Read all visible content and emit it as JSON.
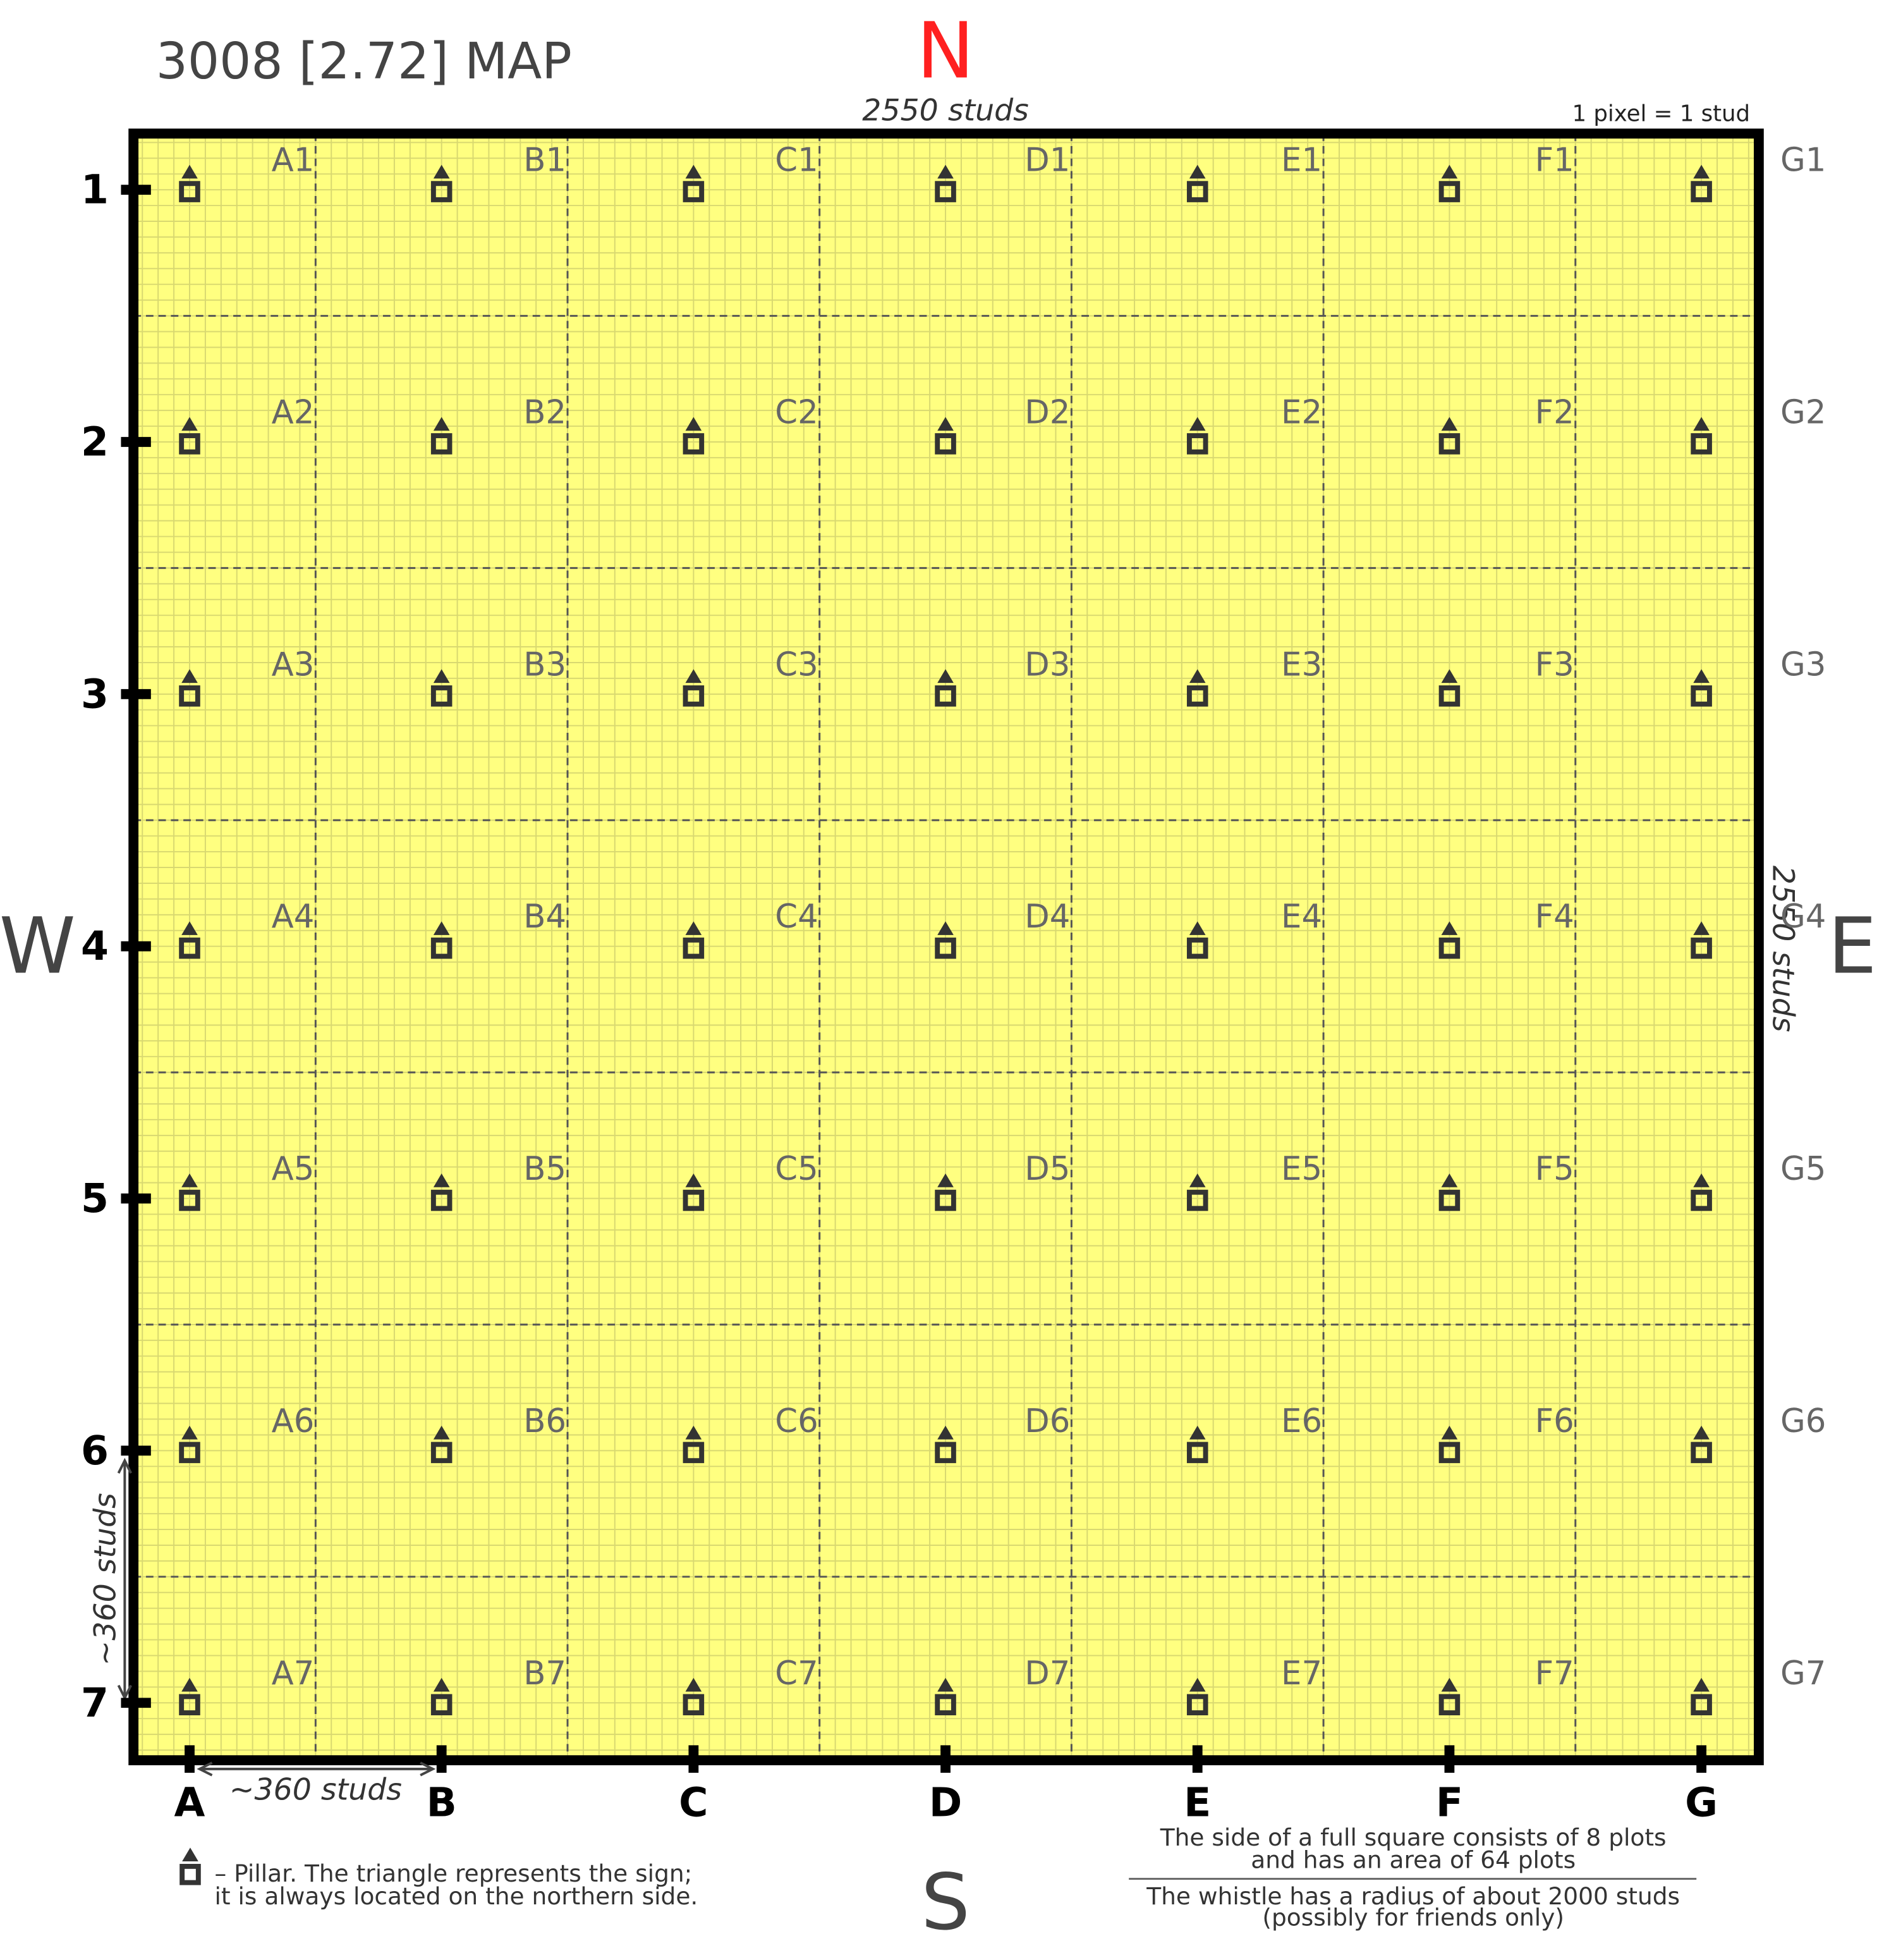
{
  "header": {
    "title": "3008 [2.72] MAP",
    "scale_note": "1 pixel = 1 stud"
  },
  "compass": {
    "north": "N",
    "south": "S",
    "east": "E",
    "west": "W"
  },
  "dimensions": {
    "top": "2550 studs",
    "right": "2550 studs",
    "cell_width": "~360 studs",
    "cell_height": "~360 studs"
  },
  "columns": [
    "A",
    "B",
    "C",
    "D",
    "E",
    "F",
    "G"
  ],
  "rows": [
    "1",
    "2",
    "3",
    "4",
    "5",
    "6",
    "7"
  ],
  "cells": [
    [
      "A1",
      "B1",
      "C1",
      "D1",
      "E1",
      "F1",
      "G1"
    ],
    [
      "A2",
      "B2",
      "C2",
      "D2",
      "E2",
      "F2",
      "G2"
    ],
    [
      "A3",
      "B3",
      "C3",
      "D3",
      "E3",
      "F3",
      "G3"
    ],
    [
      "A4",
      "B4",
      "C4",
      "D4",
      "E4",
      "F4",
      "G4"
    ],
    [
      "A5",
      "B5",
      "C5",
      "D5",
      "E5",
      "F5",
      "G5"
    ],
    [
      "A6",
      "B6",
      "C6",
      "D6",
      "E6",
      "F6",
      "G6"
    ],
    [
      "A7",
      "B7",
      "C7",
      "D7",
      "E7",
      "F7",
      "G7"
    ]
  ],
  "legend": {
    "lines": [
      "– Pillar. The triangle represents the sign;",
      "it is always located on the northern side."
    ]
  },
  "notes": {
    "plots": [
      "The side of a full square consists of 8 plots",
      "and has an area of 64 plots"
    ],
    "whistle": [
      "The whistle has a radius of about 2000 studs",
      "(possibly for friends only)"
    ]
  }
}
